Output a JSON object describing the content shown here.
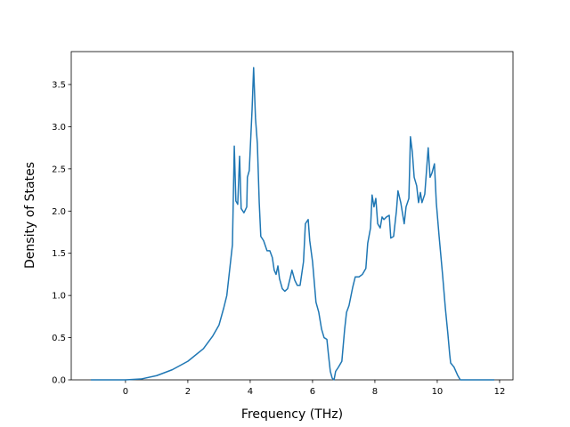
{
  "chart_data": {
    "type": "line",
    "xlabel": "Frequency (THz)",
    "ylabel": "Density of States",
    "x": [
      -1.11,
      0,
      0.5,
      1,
      1.5,
      2,
      2.5,
      2.8,
      3.0,
      3.15,
      3.25,
      3.34,
      3.43,
      3.49,
      3.54,
      3.6,
      3.66,
      3.71,
      3.8,
      3.89,
      3.91,
      3.97,
      4.06,
      4.11,
      4.17,
      4.23,
      4.29,
      4.34,
      4.43,
      4.54,
      4.63,
      4.71,
      4.77,
      4.83,
      4.89,
      4.94,
      5.03,
      5.11,
      5.2,
      5.29,
      5.34,
      5.43,
      5.51,
      5.6,
      5.71,
      5.77,
      5.86,
      5.91,
      6.0,
      6.11,
      6.2,
      6.29,
      6.37,
      6.46,
      6.51,
      6.57,
      6.63,
      6.69,
      6.74,
      6.83,
      6.94,
      7.03,
      7.09,
      7.17,
      7.29,
      7.37,
      7.49,
      7.6,
      7.71,
      7.77,
      7.86,
      7.91,
      7.97,
      8.03,
      8.09,
      8.17,
      8.23,
      8.29,
      8.37,
      8.46,
      8.51,
      8.6,
      8.69,
      8.74,
      8.83,
      8.94,
      9.0,
      9.09,
      9.14,
      9.2,
      9.26,
      9.34,
      9.4,
      9.46,
      9.51,
      9.6,
      9.71,
      9.77,
      9.83,
      9.91,
      9.97,
      10.06,
      10.17,
      10.26,
      10.34,
      10.4,
      10.43,
      10.54,
      10.66,
      10.74,
      11.83
    ],
    "series": [
      {
        "color": "#1f77b4",
        "values": [
          0,
          0,
          0.01,
          0.05,
          0.12,
          0.22,
          0.37,
          0.52,
          0.65,
          0.85,
          1.0,
          1.3,
          1.6,
          2.77,
          2.12,
          2.08,
          2.65,
          2.03,
          1.98,
          2.05,
          2.4,
          2.48,
          3.2,
          3.7,
          3.1,
          2.8,
          2.1,
          1.7,
          1.65,
          1.53,
          1.53,
          1.45,
          1.3,
          1.25,
          1.35,
          1.2,
          1.08,
          1.05,
          1.08,
          1.22,
          1.3,
          1.18,
          1.12,
          1.12,
          1.4,
          1.85,
          1.9,
          1.65,
          1.4,
          0.92,
          0.8,
          0.6,
          0.5,
          0.48,
          0.3,
          0.1,
          0.02,
          0,
          0.1,
          0.15,
          0.22,
          0.6,
          0.8,
          0.88,
          1.1,
          1.22,
          1.22,
          1.25,
          1.32,
          1.62,
          1.8,
          2.19,
          2.05,
          2.15,
          1.85,
          1.8,
          1.93,
          1.9,
          1.93,
          1.95,
          1.68,
          1.7,
          2.0,
          2.24,
          2.1,
          1.85,
          2.05,
          2.15,
          2.88,
          2.7,
          2.4,
          2.3,
          2.1,
          2.22,
          2.1,
          2.2,
          2.75,
          2.4,
          2.45,
          2.56,
          2.1,
          1.7,
          1.25,
          0.85,
          0.55,
          0.3,
          0.2,
          0.15,
          0.05,
          0,
          0
        ]
      }
    ],
    "xlim": [
      -1.74,
      12.43
    ],
    "ylim": [
      0,
      3.89
    ],
    "xticks": [
      0,
      2,
      4,
      6,
      8,
      10,
      12
    ],
    "yticks": [
      {
        "value": 0,
        "label": "0.0"
      },
      {
        "value": 0.5,
        "label": "0.5"
      },
      {
        "value": 1,
        "label": "1.0"
      },
      {
        "value": 1.5,
        "label": "1.5"
      },
      {
        "value": 2,
        "label": "2.0"
      },
      {
        "value": 2.5,
        "label": "2.5"
      },
      {
        "value": 3,
        "label": "3.0"
      },
      {
        "value": 3.5,
        "label": "3.5"
      }
    ]
  }
}
